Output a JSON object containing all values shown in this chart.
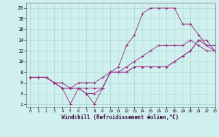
{
  "title": "",
  "xlabel": "Windchill (Refroidissement éolien,°C)",
  "ylabel": "",
  "bg_color": "#cff0ee",
  "grid_color": "#aad8cc",
  "line_color": "#993388",
  "xlim": [
    -0.5,
    23
  ],
  "ylim": [
    1.5,
    21
  ],
  "xticks": [
    0,
    1,
    2,
    3,
    4,
    5,
    6,
    7,
    8,
    9,
    10,
    11,
    12,
    13,
    14,
    15,
    16,
    17,
    18,
    19,
    20,
    21,
    22,
    23
  ],
  "yticks": [
    2,
    4,
    6,
    8,
    10,
    12,
    14,
    16,
    18,
    20
  ],
  "series": [
    {
      "x": [
        0,
        1,
        2,
        3,
        4,
        5,
        6,
        7,
        8,
        9,
        10,
        11,
        12,
        13,
        14,
        15,
        16,
        17,
        18,
        19,
        20,
        21,
        22,
        23
      ],
      "y": [
        7,
        7,
        7,
        6,
        6,
        5,
        5,
        5,
        5,
        5,
        8,
        9,
        13,
        15,
        19,
        20,
        20,
        20,
        20,
        17,
        17,
        15,
        13,
        12
      ]
    },
    {
      "x": [
        0,
        1,
        2,
        3,
        4,
        5,
        6,
        7,
        8,
        9,
        10,
        11,
        12,
        13,
        14,
        15,
        16,
        17,
        18,
        19,
        20,
        21,
        22,
        23
      ],
      "y": [
        7,
        7,
        7,
        6,
        5,
        5,
        5,
        4,
        4,
        5,
        8,
        8,
        8,
        9,
        9,
        9,
        9,
        9,
        10,
        11,
        12,
        14,
        13,
        13
      ]
    },
    {
      "x": [
        0,
        1,
        2,
        3,
        4,
        5,
        6,
        7,
        8,
        9,
        10,
        11,
        12,
        13,
        14,
        15,
        16,
        17,
        18,
        19,
        20,
        21,
        22,
        23
      ],
      "y": [
        7,
        7,
        7,
        6,
        5,
        2,
        5,
        4,
        2,
        5,
        8,
        8,
        8,
        9,
        9,
        9,
        9,
        9,
        10,
        11,
        12,
        14,
        14,
        12
      ]
    },
    {
      "x": [
        0,
        1,
        2,
        3,
        4,
        5,
        6,
        7,
        8,
        9,
        10,
        11,
        12,
        13,
        14,
        15,
        16,
        17,
        18,
        19,
        20,
        21,
        22,
        23
      ],
      "y": [
        7,
        7,
        7,
        6,
        5,
        5,
        6,
        6,
        6,
        7,
        8,
        8,
        9,
        10,
        11,
        12,
        13,
        13,
        13,
        13,
        14,
        13,
        12,
        12
      ]
    }
  ]
}
